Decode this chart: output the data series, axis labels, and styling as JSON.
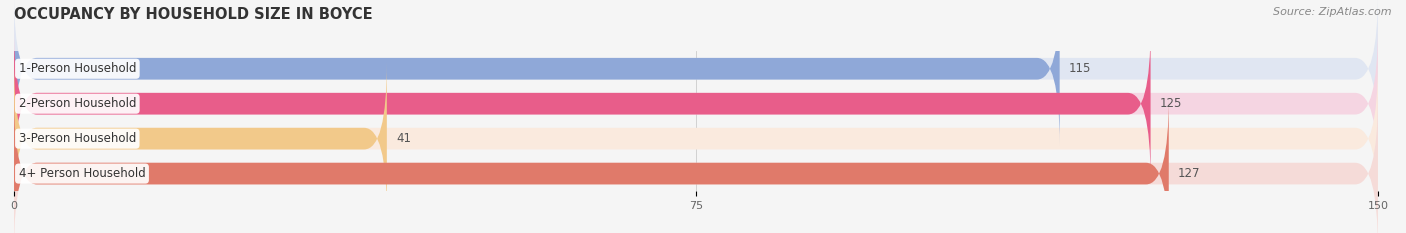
{
  "title": "OCCUPANCY BY HOUSEHOLD SIZE IN BOYCE",
  "source": "Source: ZipAtlas.com",
  "categories": [
    "1-Person Household",
    "2-Person Household",
    "3-Person Household",
    "4+ Person Household"
  ],
  "values": [
    115,
    125,
    41,
    127
  ],
  "bar_colors": [
    "#8fa8d8",
    "#e85d8a",
    "#f2c98a",
    "#e07a6a"
  ],
  "bg_colors": [
    "#e0e6f2",
    "#f5d5e2",
    "#faeade",
    "#f5dbd8"
  ],
  "xlim": [
    0,
    150
  ],
  "xticks": [
    0,
    75,
    150
  ],
  "bar_height": 0.62,
  "label_fontsize": 8.5,
  "value_fontsize": 8.5,
  "title_fontsize": 10.5,
  "source_fontsize": 8,
  "background_color": "#f5f5f5"
}
